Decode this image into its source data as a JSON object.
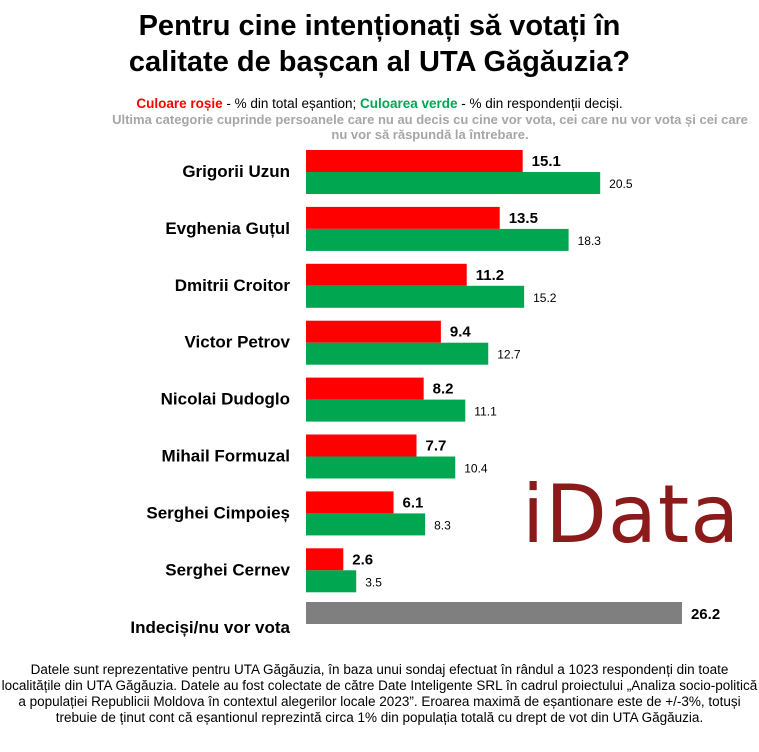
{
  "title": {
    "line1": "Pentru cine intenționați să votați în",
    "line2": "calitate de bașcan al UTA Găgăuzia?"
  },
  "legend": {
    "red_label": "Culoare roșie",
    "red_text": " - % din total eșantion; ",
    "green_label": "Culoarea verde",
    "green_text": " - % din respondenții deciși."
  },
  "note": "Ultima categorie cuprinde persoanele care nu au decis cu cine vor vota, cei care nu vor vota și cei care nu vor să răspundă la întrebare.",
  "logo": "iData",
  "footer": "Datele sunt reprezentative pentru UTA Găgăuzia, în baza unui sondaj efectuat în rândul a 1023 respondenți din toate localitățile din UTA Găgăuzia. Datele au fost colectate de către Date Inteligente SRL în cadrul proiectului „Analiza socio-politică a populației Republicii Moldova în contextul alegerilor locale 2023”. Eroarea maximă de eșantionare este de +/-3%, totuși trebuie de ținut cont că eșantionul reprezintă circa 1% din populația totală cu drept de vot din UTA Găgăuzia.",
  "colors": {
    "total": "#ff0000",
    "decided": "#00a650",
    "undecided": "#7f7f7f"
  },
  "chart_data": {
    "type": "bar",
    "orientation": "horizontal",
    "categories": [
      "Grigorii Uzun",
      "Evghenia Guțul",
      "Dmitrii Croitor",
      "Victor Petrov",
      "Nicolai Dudoglo",
      "Mihail Formuzal",
      "Serghei Cimpoieș",
      "Serghei Cernev"
    ],
    "series": [
      {
        "name": "% din total eșantion",
        "values": [
          15.1,
          13.5,
          11.2,
          9.4,
          8.2,
          7.7,
          6.1,
          2.6
        ]
      },
      {
        "name": "% din respondenții deciși",
        "values": [
          20.5,
          18.3,
          15.2,
          12.7,
          11.1,
          10.4,
          8.3,
          3.5
        ]
      }
    ],
    "undecided": {
      "label": "Indeciși/nu vor vota",
      "value": 26.2
    },
    "xlim": [
      0,
      30
    ],
    "value_labels": {
      "total": [
        "15.1",
        "13.5",
        "11.2",
        "9.4",
        "8.2",
        "7.7",
        "6.1",
        "2.6"
      ],
      "decided": [
        "20.5",
        "18.3",
        "15.2",
        "12.7",
        "11.1",
        "10.4",
        "8.3",
        "3.5"
      ],
      "undecided": "26.2"
    }
  }
}
